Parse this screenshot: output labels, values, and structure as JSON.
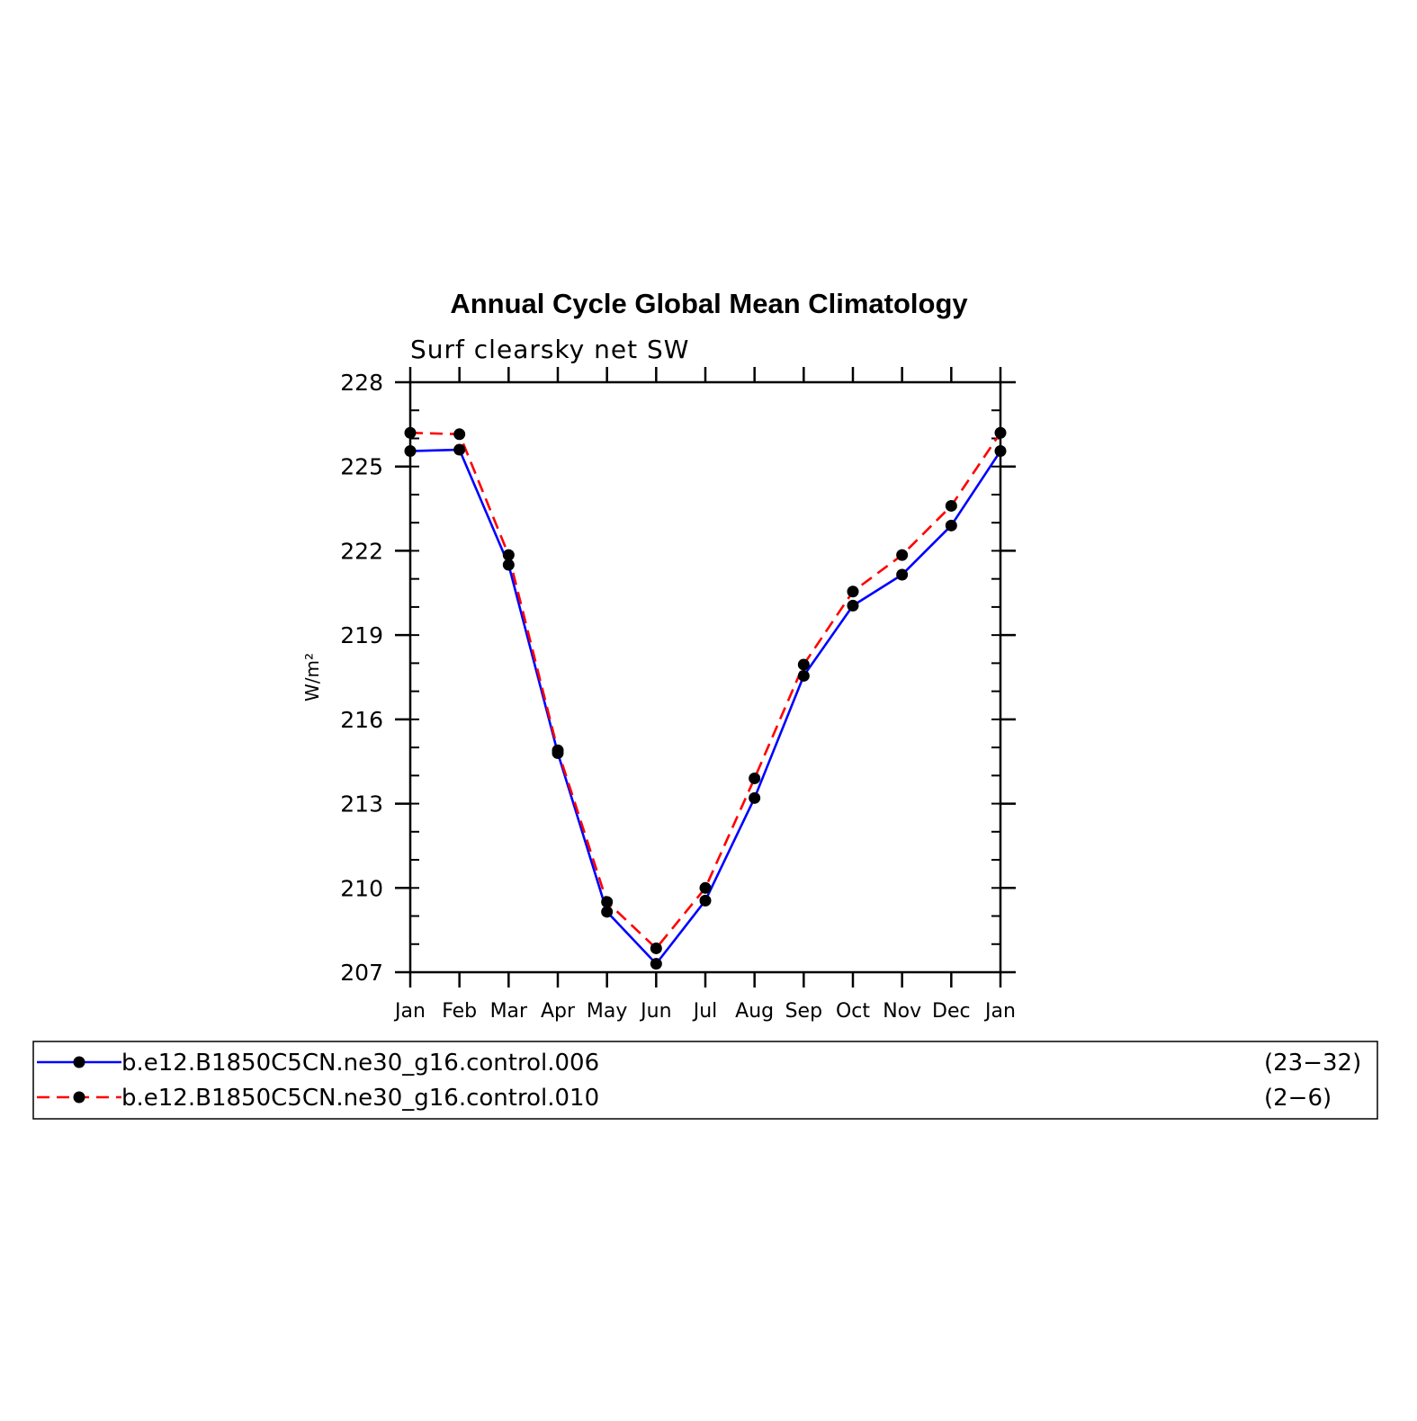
{
  "chart_data": {
    "type": "line",
    "title": "Annual Cycle Global Mean Climatology",
    "subtitle": "Surf clearsky net SW",
    "ylabel": "W/m²",
    "xlabel": "",
    "categories": [
      "Jan",
      "Feb",
      "Mar",
      "Apr",
      "May",
      "Jun",
      "Jul",
      "Aug",
      "Sep",
      "Oct",
      "Nov",
      "Dec",
      "Jan"
    ],
    "ylim": [
      207,
      228
    ],
    "yticks": [
      "207",
      "210",
      "213",
      "216",
      "219",
      "222",
      "225",
      "228"
    ],
    "y_minor_step": 1,
    "grid": false,
    "legend_position": "bottom",
    "series": [
      {
        "name": "b.e12.B1850C5CN.ne30_g16.control.006",
        "years": "(23−32)",
        "color": "#0000ff",
        "line_style": "solid",
        "marker": "filled-circle",
        "values": [
          225.55,
          225.6,
          221.5,
          214.8,
          209.15,
          207.3,
          209.55,
          213.2,
          217.55,
          220.05,
          221.15,
          222.9,
          225.55
        ]
      },
      {
        "name": "b.e12.B1850C5CN.ne30_g16.control.010",
        "years": "(2−6)",
        "color": "#ff0000",
        "line_style": "dashed",
        "marker": "filled-circle",
        "values": [
          226.2,
          226.15,
          221.85,
          214.9,
          209.5,
          207.85,
          210.0,
          213.9,
          217.95,
          220.55,
          221.85,
          223.6,
          226.2
        ]
      }
    ]
  }
}
